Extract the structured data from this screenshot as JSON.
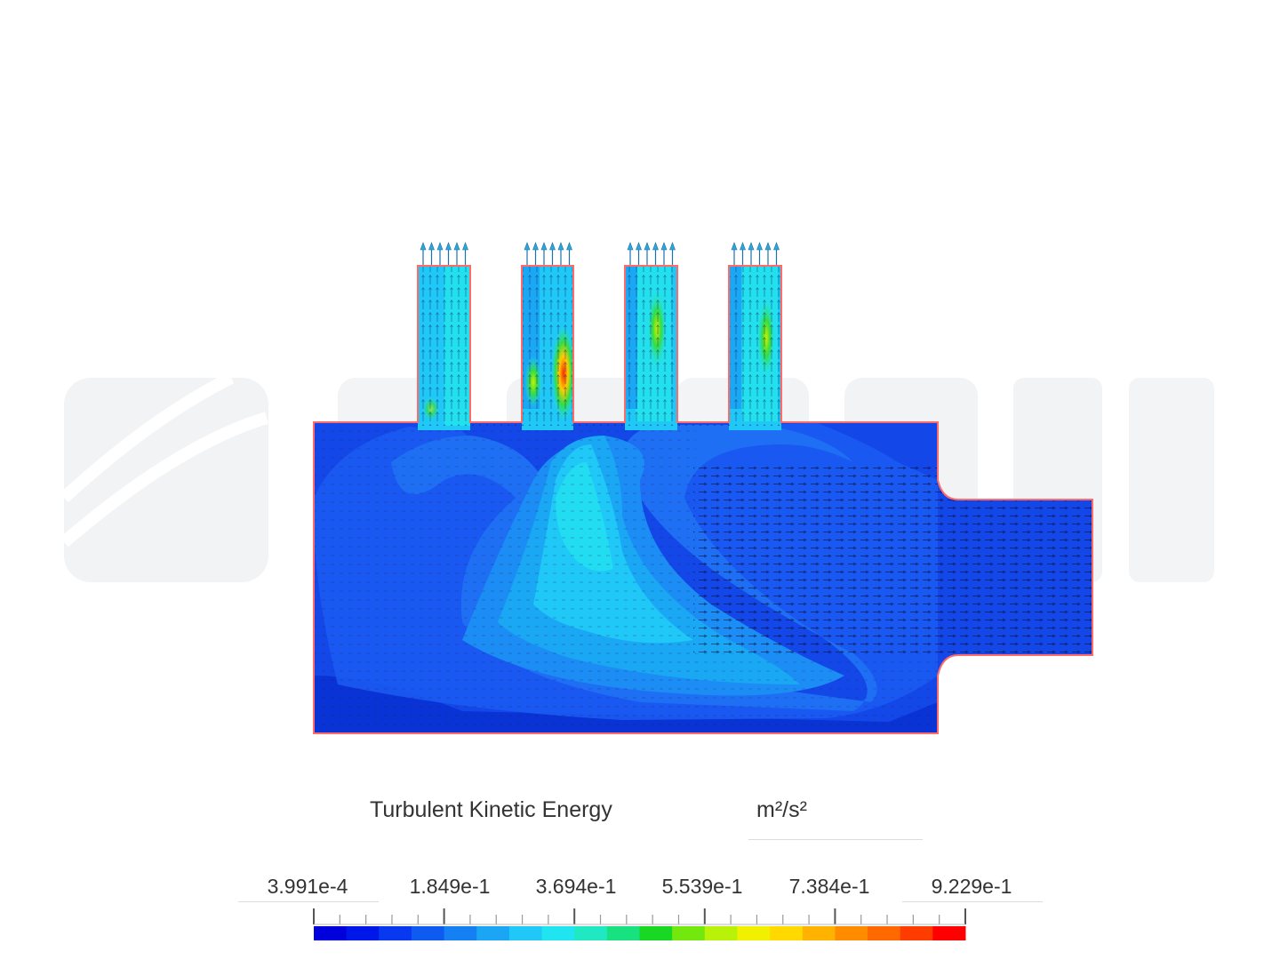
{
  "legend": {
    "title": "Turbulent Kinetic Energy",
    "unit": "m²/s²",
    "tick_labels": [
      "3.991e-4",
      "1.849e-1",
      "3.694e-1",
      "5.539e-1",
      "7.384e-1",
      "9.229e-1"
    ],
    "colors": [
      "#0000dd",
      "#0017ea",
      "#0838f0",
      "#0f5bf2",
      "#1580f3",
      "#1aa5f5",
      "#1fc8f7",
      "#20e4ef",
      "#1fe8c2",
      "#17e27f",
      "#19d824",
      "#73e80e",
      "#b9f209",
      "#f0f000",
      "#ffd900",
      "#ffb300",
      "#ff8c00",
      "#ff6900",
      "#ff3c00",
      "#ff0000"
    ]
  },
  "viewer": {
    "watermark": "SIMSCALE",
    "outline_color": "#ff6b6b"
  }
}
